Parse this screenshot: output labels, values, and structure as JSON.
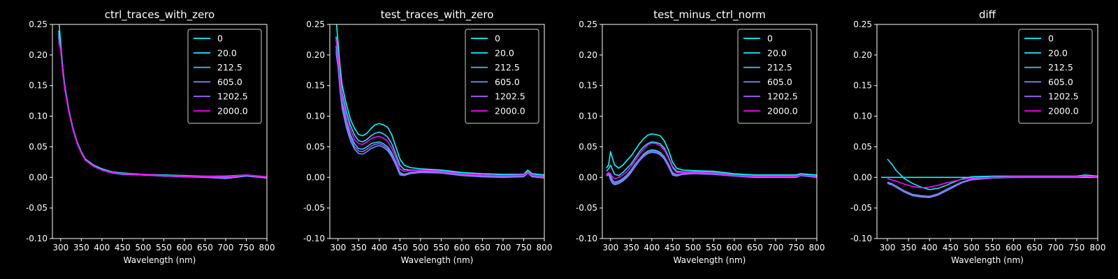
{
  "figure": {
    "background": "#000000",
    "foreground": "#ffffff",
    "legend": {
      "labels": [
        "0",
        "20.0",
        "212.5",
        "605.0",
        "1202.5",
        "2000.0"
      ],
      "colors": [
        "#00ffff",
        "#1ae5ff",
        "#3cc3ff",
        "#6699ff",
        "#9966ff",
        "#ff00ff"
      ]
    }
  },
  "chart_data": [
    {
      "type": "line",
      "title": "ctrl_traces_with_zero",
      "xlabel": "Wavelength (nm)",
      "ylabel": "",
      "xlim": [
        280,
        800
      ],
      "ylim": [
        -0.1,
        0.25
      ],
      "xticks": [
        300,
        350,
        400,
        450,
        500,
        550,
        600,
        650,
        700,
        750,
        800
      ],
      "yticks": [
        -0.1,
        -0.05,
        0.0,
        0.05,
        0.1,
        0.15,
        0.2,
        0.25
      ],
      "grid": false,
      "legend_position": "top-right",
      "x": [
        295,
        300,
        305,
        310,
        320,
        330,
        340,
        350,
        360,
        380,
        400,
        425,
        450,
        500,
        550,
        600,
        650,
        700,
        750,
        800
      ],
      "series": [
        {
          "name": "0",
          "values": [
            0.26,
            0.22,
            0.18,
            0.15,
            0.11,
            0.08,
            0.058,
            0.042,
            0.03,
            0.02,
            0.014,
            0.009,
            0.007,
            0.005,
            0.004,
            0.003,
            0.002,
            0.002,
            0.004,
            0.001
          ]
        },
        {
          "name": "20.0",
          "values": [
            0.24,
            0.215,
            0.176,
            0.147,
            0.108,
            0.079,
            0.057,
            0.041,
            0.029,
            0.019,
            0.013,
            0.008,
            0.006,
            0.004,
            0.003,
            0.002,
            0.001,
            0.0,
            0.003,
            0.0
          ]
        },
        {
          "name": "212.5",
          "values": [
            0.235,
            0.213,
            0.175,
            0.146,
            0.108,
            0.079,
            0.057,
            0.041,
            0.029,
            0.019,
            0.013,
            0.008,
            0.006,
            0.004,
            0.003,
            0.002,
            0.001,
            -0.001,
            0.003,
            0.0
          ]
        },
        {
          "name": "605.0",
          "values": [
            0.23,
            0.211,
            0.174,
            0.145,
            0.107,
            0.078,
            0.056,
            0.04,
            0.028,
            0.018,
            0.012,
            0.007,
            0.005,
            0.004,
            0.002,
            0.001,
            0.0,
            -0.002,
            0.002,
            -0.001
          ]
        },
        {
          "name": "1202.5",
          "values": [
            0.228,
            0.21,
            0.173,
            0.145,
            0.107,
            0.078,
            0.056,
            0.04,
            0.028,
            0.018,
            0.012,
            0.007,
            0.005,
            0.004,
            0.002,
            0.001,
            0.001,
            -0.001,
            0.003,
            0.0
          ]
        },
        {
          "name": "2000.0",
          "values": [
            0.222,
            0.208,
            0.172,
            0.144,
            0.106,
            0.077,
            0.055,
            0.04,
            0.028,
            0.018,
            0.012,
            0.008,
            0.006,
            0.005,
            0.003,
            0.002,
            0.002,
            0.001,
            0.004,
            0.001
          ]
        }
      ]
    },
    {
      "type": "line",
      "title": "test_traces_with_zero",
      "xlabel": "Wavelength (nm)",
      "ylabel": "",
      "xlim": [
        280,
        800
      ],
      "ylim": [
        -0.1,
        0.25
      ],
      "xticks": [
        300,
        350,
        400,
        450,
        500,
        550,
        600,
        650,
        700,
        750,
        800
      ],
      "yticks": [
        -0.1,
        -0.05,
        0.0,
        0.05,
        0.1,
        0.15,
        0.2,
        0.25
      ],
      "grid": false,
      "legend_position": "top-right",
      "x": [
        295,
        300,
        305,
        310,
        320,
        330,
        340,
        350,
        360,
        370,
        380,
        390,
        400,
        410,
        420,
        430,
        440,
        450,
        460,
        475,
        500,
        550,
        600,
        650,
        700,
        750,
        760,
        770,
        800
      ],
      "series": [
        {
          "name": "0",
          "values": [
            0.26,
            0.22,
            0.18,
            0.15,
            0.12,
            0.095,
            0.08,
            0.07,
            0.068,
            0.072,
            0.08,
            0.086,
            0.088,
            0.086,
            0.082,
            0.07,
            0.05,
            0.03,
            0.02,
            0.016,
            0.014,
            0.012,
            0.008,
            0.006,
            0.005,
            0.005,
            0.012,
            0.006,
            0.004
          ]
        },
        {
          "name": "20.0",
          "values": [
            0.23,
            0.205,
            0.165,
            0.138,
            0.108,
            0.085,
            0.069,
            0.06,
            0.058,
            0.062,
            0.068,
            0.072,
            0.074,
            0.071,
            0.066,
            0.055,
            0.038,
            0.02,
            0.013,
            0.012,
            0.012,
            0.011,
            0.006,
            0.004,
            0.003,
            0.004,
            0.009,
            0.004,
            0.002
          ]
        },
        {
          "name": "212.5",
          "values": [
            0.215,
            0.19,
            0.15,
            0.122,
            0.092,
            0.07,
            0.055,
            0.047,
            0.046,
            0.05,
            0.055,
            0.057,
            0.058,
            0.055,
            0.05,
            0.04,
            0.025,
            0.008,
            0.005,
            0.008,
            0.01,
            0.009,
            0.004,
            0.002,
            0.001,
            0.002,
            0.008,
            0.002,
            0.0
          ]
        },
        {
          "name": "605.0",
          "values": [
            0.205,
            0.18,
            0.14,
            0.112,
            0.082,
            0.06,
            0.046,
            0.039,
            0.038,
            0.042,
            0.047,
            0.05,
            0.052,
            0.049,
            0.044,
            0.034,
            0.02,
            0.004,
            0.003,
            0.006,
            0.008,
            0.007,
            0.003,
            0.001,
            0.0,
            0.001,
            0.007,
            0.001,
            -0.001
          ]
        },
        {
          "name": "1202.5",
          "values": [
            0.21,
            0.185,
            0.145,
            0.117,
            0.087,
            0.065,
            0.05,
            0.043,
            0.042,
            0.046,
            0.051,
            0.054,
            0.055,
            0.052,
            0.047,
            0.037,
            0.022,
            0.006,
            0.004,
            0.007,
            0.009,
            0.008,
            0.004,
            0.002,
            0.001,
            0.002,
            0.007,
            0.002,
            0.0
          ]
        },
        {
          "name": "2000.0",
          "values": [
            0.225,
            0.2,
            0.16,
            0.132,
            0.1,
            0.078,
            0.062,
            0.055,
            0.054,
            0.058,
            0.063,
            0.066,
            0.067,
            0.064,
            0.059,
            0.048,
            0.032,
            0.014,
            0.01,
            0.011,
            0.012,
            0.01,
            0.006,
            0.004,
            0.003,
            0.004,
            0.008,
            0.004,
            0.002
          ]
        }
      ]
    },
    {
      "type": "line",
      "title": "test_minus_ctrl_norm",
      "xlabel": "Wavelength (nm)",
      "ylabel": "",
      "xlim": [
        280,
        800
      ],
      "ylim": [
        -0.1,
        0.25
      ],
      "xticks": [
        300,
        350,
        400,
        450,
        500,
        550,
        600,
        650,
        700,
        750,
        800
      ],
      "yticks": [
        -0.1,
        -0.05,
        0.0,
        0.05,
        0.1,
        0.15,
        0.2,
        0.25
      ],
      "grid": false,
      "legend_position": "top-right",
      "x": [
        290,
        295,
        300,
        305,
        310,
        320,
        330,
        340,
        350,
        360,
        370,
        380,
        390,
        400,
        410,
        420,
        430,
        440,
        450,
        460,
        475,
        500,
        550,
        600,
        650,
        700,
        750,
        760,
        800
      ],
      "series": [
        {
          "name": "0",
          "values": [
            0.015,
            0.02,
            0.042,
            0.03,
            0.02,
            0.015,
            0.02,
            0.028,
            0.035,
            0.045,
            0.055,
            0.063,
            0.069,
            0.071,
            0.07,
            0.068,
            0.06,
            0.045,
            0.025,
            0.015,
            0.012,
            0.011,
            0.01,
            0.006,
            0.004,
            0.004,
            0.004,
            0.006,
            0.004
          ]
        },
        {
          "name": "20.0",
          "values": [
            0.01,
            0.014,
            0.02,
            0.012,
            0.005,
            0.003,
            0.008,
            0.015,
            0.022,
            0.032,
            0.042,
            0.05,
            0.055,
            0.058,
            0.057,
            0.055,
            0.048,
            0.034,
            0.018,
            0.01,
            0.009,
            0.009,
            0.008,
            0.004,
            0.002,
            0.002,
            0.002,
            0.005,
            0.002
          ]
        },
        {
          "name": "212.5",
          "values": [
            0.005,
            0.008,
            0.002,
            -0.005,
            -0.008,
            -0.006,
            -0.002,
            0.004,
            0.012,
            0.022,
            0.03,
            0.038,
            0.043,
            0.045,
            0.044,
            0.041,
            0.034,
            0.022,
            0.008,
            0.004,
            0.006,
            0.007,
            0.006,
            0.003,
            0.001,
            0.001,
            0.001,
            0.004,
            0.001
          ]
        },
        {
          "name": "605.0",
          "values": [
            0.002,
            0.005,
            -0.004,
            -0.01,
            -0.012,
            -0.01,
            -0.006,
            0.0,
            0.008,
            0.018,
            0.027,
            0.034,
            0.039,
            0.041,
            0.04,
            0.037,
            0.03,
            0.018,
            0.004,
            0.002,
            0.005,
            0.006,
            0.005,
            0.002,
            0.0,
            0.0,
            0.0,
            0.003,
            0.0
          ]
        },
        {
          "name": "1202.5",
          "values": [
            0.003,
            0.006,
            -0.002,
            -0.008,
            -0.01,
            -0.008,
            -0.004,
            0.002,
            0.01,
            0.02,
            0.029,
            0.036,
            0.041,
            0.043,
            0.042,
            0.039,
            0.032,
            0.02,
            0.006,
            0.003,
            0.005,
            0.006,
            0.005,
            0.002,
            0.001,
            0.001,
            0.001,
            0.003,
            0.001
          ]
        },
        {
          "name": "2000.0",
          "values": [
            0.005,
            0.008,
            0.006,
            0.0,
            -0.002,
            0.0,
            0.004,
            0.01,
            0.018,
            0.028,
            0.038,
            0.046,
            0.053,
            0.056,
            0.055,
            0.052,
            0.045,
            0.032,
            0.016,
            0.008,
            0.008,
            0.008,
            0.007,
            0.003,
            0.002,
            0.002,
            0.002,
            0.004,
            0.002
          ]
        }
      ]
    },
    {
      "type": "line",
      "title": "diff",
      "xlabel": "Wavelength (nm)",
      "ylabel": "",
      "xlim": [
        275,
        800
      ],
      "ylim": [
        -0.1,
        0.25
      ],
      "xticks": [
        300,
        350,
        400,
        450,
        500,
        550,
        600,
        650,
        700,
        750,
        800
      ],
      "yticks": [
        -0.1,
        -0.05,
        0.0,
        0.05,
        0.1,
        0.15,
        0.2,
        0.25
      ],
      "grid": false,
      "legend_position": "top-right",
      "x": [
        285,
        300,
        310,
        320,
        340,
        360,
        380,
        400,
        420,
        440,
        460,
        480,
        500,
        550,
        600,
        650,
        700,
        750,
        770,
        800
      ],
      "series": [
        {
          "name": "0",
          "values": [
            0.0,
            0.0,
            0.0,
            0.0,
            0.0,
            0.0,
            0.0,
            0.0,
            0.0,
            0.0,
            0.0,
            0.0,
            0.0,
            0.0,
            0.0,
            0.0,
            0.0,
            0.0,
            0.0,
            0.0
          ]
        },
        {
          "name": "20.0",
          "values": [
            null,
            0.03,
            0.022,
            0.012,
            -0.002,
            -0.01,
            -0.016,
            -0.02,
            -0.018,
            -0.013,
            -0.007,
            -0.002,
            0.001,
            0.002,
            0.002,
            0.002,
            0.002,
            0.002,
            0.004,
            0.002
          ]
        },
        {
          "name": "212.5",
          "values": [
            null,
            -0.008,
            -0.01,
            -0.014,
            -0.022,
            -0.028,
            -0.03,
            -0.031,
            -0.027,
            -0.02,
            -0.013,
            -0.007,
            -0.003,
            0.0,
            0.001,
            0.001,
            0.001,
            0.001,
            0.003,
            0.001
          ]
        },
        {
          "name": "605.0",
          "values": [
            null,
            -0.01,
            -0.012,
            -0.016,
            -0.024,
            -0.03,
            -0.032,
            -0.033,
            -0.029,
            -0.022,
            -0.015,
            -0.008,
            -0.004,
            -0.001,
            0.0,
            0.0,
            0.0,
            0.0,
            0.002,
            0.0
          ]
        },
        {
          "name": "1202.5",
          "values": [
            null,
            -0.009,
            -0.011,
            -0.015,
            -0.023,
            -0.029,
            -0.031,
            -0.032,
            -0.028,
            -0.021,
            -0.014,
            -0.008,
            -0.004,
            -0.001,
            0.0,
            0.0,
            0.0,
            0.0,
            0.002,
            0.0
          ]
        },
        {
          "name": "2000.0",
          "values": [
            null,
            -0.002,
            -0.004,
            -0.006,
            -0.011,
            -0.015,
            -0.017,
            -0.016,
            -0.013,
            -0.009,
            -0.006,
            -0.003,
            -0.001,
            0.0,
            0.001,
            0.001,
            0.001,
            0.001,
            0.002,
            0.001
          ]
        }
      ]
    }
  ]
}
